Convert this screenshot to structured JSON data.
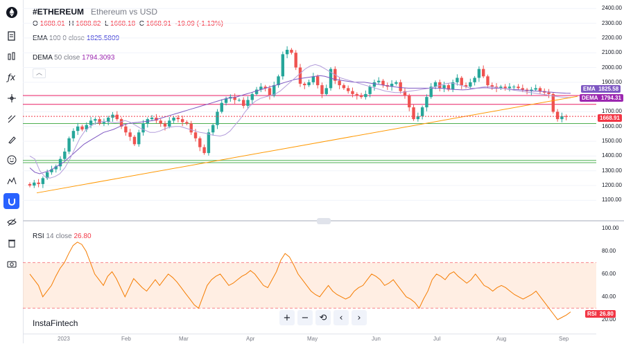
{
  "toolbar": {
    "items": [
      {
        "icon": "ethereum-logo-icon"
      },
      {
        "icon": "document-icon"
      },
      {
        "icon": "compare-icon"
      },
      {
        "icon": "formula-icon"
      },
      {
        "icon": "crosshair-icon"
      },
      {
        "icon": "drawing-lines-icon"
      },
      {
        "icon": "brush-icon"
      },
      {
        "icon": "emoji-icon"
      },
      {
        "icon": "pattern-icon"
      },
      {
        "icon": "magnet-icon"
      },
      {
        "icon": "hide-eye-icon"
      },
      {
        "icon": "trash-icon"
      },
      {
        "icon": "camera-icon"
      }
    ],
    "active_index": 9
  },
  "header": {
    "symbol": "#ETHEREUM",
    "description": "Ethereum vs USD",
    "o_label": "O",
    "o_value": "1688.01",
    "h_label": "H",
    "h_value": "1688.82",
    "l_label": "L",
    "l_value": "1668.18",
    "c_label": "C",
    "c_value": "1668.91",
    "change": "-19.09 (-1.13%)"
  },
  "indicators": {
    "ema": {
      "name": "EMA",
      "params": "100 0 close",
      "value": "1825.5809"
    },
    "dema": {
      "name": "DEMA",
      "params": "50 close",
      "value": "1794.3093"
    },
    "rsi": {
      "name": "RSI",
      "params": "14 close",
      "value": "26.80"
    }
  },
  "price_axis": {
    "ticks": [
      "2400.00",
      "2300.00",
      "2200.00",
      "2100.00",
      "2000.00",
      "1900.00",
      "1800.00",
      "1700.00",
      "1600.00",
      "1500.00",
      "1400.00",
      "1300.00",
      "1200.00",
      "1100.00"
    ]
  },
  "rsi_axis": {
    "ticks": [
      "100.00",
      "80.00",
      "60.00",
      "40.00",
      "20.00"
    ]
  },
  "time_axis": {
    "labels": [
      "2023",
      "Feb",
      "Mar",
      "Apr",
      "May",
      "Jun",
      "Jul",
      "Aug",
      "Sep"
    ]
  },
  "tags": {
    "ema_label": "EMA",
    "ema_value": "1825.58",
    "dema_label": "DEMA",
    "dema_value": "1794.31",
    "price_value": "1668.91",
    "rsi_label": "RSI",
    "rsi_value": "26.80"
  },
  "zoom": {
    "plus": "+",
    "minus": "−",
    "reset": "⟲",
    "left": "‹",
    "right": "›"
  },
  "brand": "InstaFintech",
  "chart_data": {
    "type": "candlestick",
    "symbol": "#ETHEREUM",
    "ylim": [
      1050,
      2420
    ],
    "closes": [
      1200,
      1220,
      1210,
      1250,
      1290,
      1310,
      1330,
      1380,
      1430,
      1520,
      1570,
      1600,
      1580,
      1610,
      1640,
      1650,
      1620,
      1630,
      1660,
      1680,
      1650,
      1600,
      1560,
      1530,
      1480,
      1560,
      1620,
      1650,
      1660,
      1640,
      1620,
      1600,
      1640,
      1660,
      1650,
      1630,
      1620,
      1560,
      1520,
      1460,
      1420,
      1560,
      1610,
      1700,
      1760,
      1790,
      1800,
      1780,
      1780,
      1740,
      1780,
      1820,
      1850,
      1870,
      1860,
      1810,
      1880,
      1940,
      2090,
      2120,
      2100,
      2000,
      1890,
      1880,
      1900,
      1940,
      1880,
      1820,
      1860,
      1990,
      1910,
      1880,
      1860,
      1840,
      1820,
      1810,
      1800,
      1820,
      1870,
      1900,
      1910,
      1880,
      1870,
      1890,
      1900,
      1840,
      1810,
      1730,
      1650,
      1670,
      1730,
      1800,
      1870,
      1900,
      1860,
      1880,
      1850,
      1900,
      1930,
      1880,
      1870,
      1900,
      1930,
      1990,
      1940,
      1880,
      1870,
      1860,
      1870,
      1860,
      1870,
      1870,
      1860,
      1850,
      1840,
      1850,
      1860,
      1840,
      1830,
      1820,
      1700,
      1650,
      1670,
      1668.91
    ],
    "ema": [
      1320,
      1290,
      1280,
      1290,
      1300,
      1320,
      1340,
      1360,
      1390,
      1420,
      1450,
      1480,
      1500,
      1520,
      1540,
      1560,
      1570,
      1580,
      1595,
      1610,
      1620,
      1625,
      1628,
      1632,
      1636,
      1640,
      1650,
      1660,
      1670,
      1680,
      1690,
      1700,
      1710,
      1720,
      1730,
      1740,
      1750,
      1760,
      1770,
      1780,
      1790,
      1795,
      1800,
      1810,
      1820,
      1830,
      1840,
      1850,
      1860,
      1870,
      1880,
      1890,
      1900,
      1910,
      1920,
      1925,
      1930,
      1935,
      1940,
      1945,
      1940,
      1930,
      1920,
      1915,
      1910,
      1905,
      1900,
      1900,
      1900,
      1895,
      1890,
      1885,
      1880,
      1875,
      1870,
      1865,
      1862,
      1860,
      1860,
      1860,
      1860,
      1860,
      1860,
      1860,
      1858,
      1855,
      1852,
      1850,
      1848,
      1850,
      1855,
      1860,
      1862,
      1862,
      1860,
      1860,
      1858,
      1855,
      1852,
      1850,
      1848,
      1845,
      1842,
      1840,
      1838,
      1835,
      1833,
      1830,
      1828,
      1826,
      1825.58
    ],
    "dema": [
      1400,
      1380,
      1300,
      1260,
      1250,
      1260,
      1280,
      1320,
      1380,
      1450,
      1520,
      1570,
      1600,
      1620,
      1630,
      1635,
      1630,
      1625,
      1630,
      1640,
      1630,
      1610,
      1590,
      1575,
      1560,
      1560,
      1570,
      1585,
      1595,
      1600,
      1600,
      1590,
      1580,
      1570,
      1560,
      1555,
      1545,
      1540,
      1535,
      1545,
      1570,
      1610,
      1650,
      1700,
      1740,
      1770,
      1790,
      1800,
      1810,
      1820,
      1840,
      1870,
      1900,
      1930,
      1960,
      1990,
      2010,
      2020,
      2010,
      1990,
      1970,
      1950,
      1930,
      1920,
      1910,
      1900,
      1890,
      1880,
      1870,
      1860,
      1850,
      1840,
      1835,
      1830,
      1830,
      1835,
      1840,
      1845,
      1850,
      1855,
      1860,
      1870,
      1880,
      1890,
      1895,
      1890,
      1880,
      1870,
      1860,
      1860,
      1865,
      1870,
      1870,
      1865,
      1860,
      1855,
      1850,
      1845,
      1840,
      1835,
      1830,
      1825,
      1820,
      1815,
      1810,
      1805,
      1800,
      1797,
      1794.31
    ],
    "trendline": {
      "from": {
        "x": "2023-01-02",
        "y": 1150
      },
      "to": {
        "x": "2023-08-22",
        "y": 1805
      }
    },
    "horizontal_lines": [
      {
        "y": 1810,
        "color": "#e91e63"
      },
      {
        "y": 1750,
        "color": "#e91e63"
      },
      {
        "y": 1620,
        "color": "#4caf50"
      },
      {
        "y": 1370,
        "color": "#4caf50"
      },
      {
        "y": 1355,
        "color": "#4caf50"
      }
    ],
    "rsi": {
      "ylim": [
        15,
        100
      ],
      "overbought": 70,
      "oversold": 30,
      "values": [
        60,
        55,
        50,
        40,
        45,
        50,
        58,
        65,
        70,
        78,
        85,
        88,
        86,
        80,
        70,
        60,
        55,
        50,
        58,
        62,
        56,
        48,
        40,
        48,
        56,
        52,
        48,
        45,
        50,
        55,
        50,
        55,
        60,
        57,
        53,
        48,
        43,
        38,
        33,
        30,
        40,
        50,
        55,
        58,
        60,
        55,
        50,
        52,
        55,
        58,
        60,
        63,
        60,
        55,
        50,
        48,
        55,
        62,
        72,
        78,
        75,
        68,
        60,
        55,
        50,
        45,
        42,
        40,
        45,
        50,
        45,
        42,
        40,
        38,
        40,
        45,
        48,
        50,
        55,
        60,
        58,
        55,
        50,
        52,
        55,
        50,
        45,
        40,
        38,
        35,
        30,
        38,
        45,
        55,
        60,
        58,
        55,
        60,
        62,
        58,
        55,
        52,
        55,
        60,
        55,
        50,
        48,
        45,
        48,
        50,
        48,
        45,
        42,
        40,
        38,
        40,
        42,
        45,
        40,
        35,
        30,
        25,
        20,
        22,
        24,
        26.8
      ]
    }
  }
}
